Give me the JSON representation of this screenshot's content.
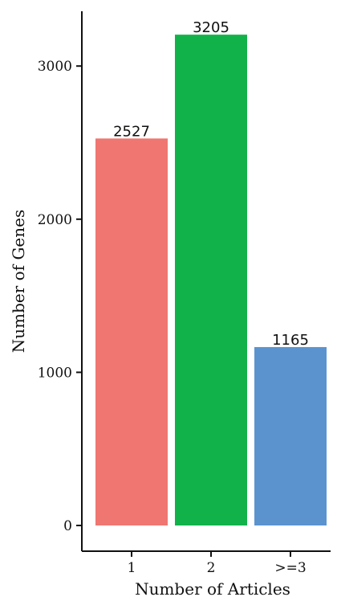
{
  "chart_data": {
    "type": "bar",
    "categories": [
      "1",
      "2",
      ">=3"
    ],
    "values": [
      2527,
      3205,
      1165
    ],
    "data_labels": [
      "2527",
      "3205",
      "1165"
    ],
    "colors": [
      "#F07671",
      "#12B24A",
      "#5B93CF"
    ],
    "xlabel": "Number of Articles",
    "ylabel": "Number of Genes",
    "ylim": [
      0,
      3500
    ],
    "yticks": [
      0,
      1000,
      2000,
      3000
    ],
    "ytick_labels": [
      "0",
      "1000",
      "2000",
      "3000"
    ],
    "grid": false,
    "legend": "none"
  }
}
